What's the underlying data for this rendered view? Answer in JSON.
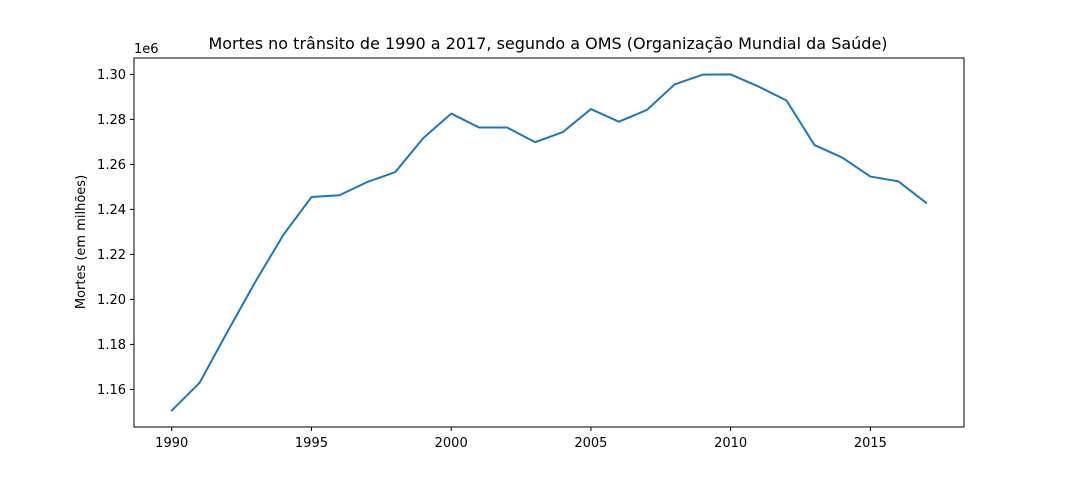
{
  "chart_data": {
    "type": "line",
    "title": "Mortes no trânsito de 1990 a 2017, segundo a OMS (Organização Mundial da Saúde)",
    "xlabel": "",
    "ylabel": "Mortes (em milhões)",
    "y_offset_label": "1e6",
    "x_ticks": [
      1990,
      1995,
      2000,
      2005,
      2010,
      2015
    ],
    "y_ticks": [
      1.16,
      1.18,
      1.2,
      1.22,
      1.24,
      1.26,
      1.28,
      1.3
    ],
    "y_tick_labels": [
      "1.16",
      "1.18",
      "1.20",
      "1.22",
      "1.24",
      "1.26",
      "1.28",
      "1.30"
    ],
    "xlim": [
      1988.65,
      2018.35
    ],
    "ylim": [
      1.1433,
      1.3073
    ],
    "grid": false,
    "color": "#1f77b4",
    "x": [
      1990,
      1991,
      1992,
      1993,
      1994,
      1995,
      1996,
      1997,
      1998,
      1999,
      2000,
      2001,
      2002,
      2003,
      2004,
      2005,
      2006,
      2007,
      2008,
      2009,
      2010,
      2011,
      2012,
      2013,
      2014,
      2015,
      2016,
      2017
    ],
    "values": [
      1.1506,
      1.163,
      1.1858,
      1.208,
      1.2288,
      1.2455,
      1.2463,
      1.2522,
      1.2566,
      1.2717,
      1.2826,
      1.2764,
      1.2764,
      1.2699,
      1.2744,
      1.2846,
      1.279,
      1.2842,
      1.2956,
      1.2999,
      1.3,
      1.2946,
      1.2884,
      1.2686,
      1.263,
      1.2546,
      1.2525,
      1.2429
    ]
  }
}
